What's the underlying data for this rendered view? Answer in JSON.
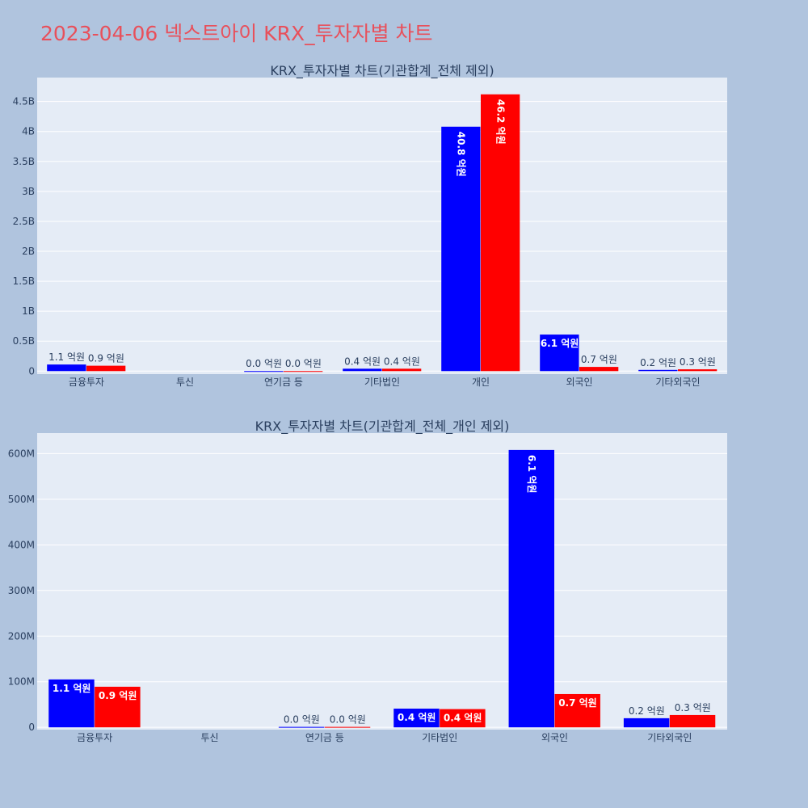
{
  "page": {
    "title": "2023-04-06 넥스트아이 KRX_투자자별 차트"
  },
  "colors": {
    "background": "#b0c4de",
    "plot_background": "#e5ecf6",
    "title": "#e8505b",
    "buy": "#0000ff",
    "sell": "#ff0000",
    "text": "#2a3f5f"
  },
  "chart_data": [
    {
      "type": "bar",
      "title": "KRX_투자자별 차트(기관합계_전체 제외)",
      "categories": [
        "금융투자",
        "투신",
        "연기금 등",
        "기타법인",
        "개인",
        "외국인",
        "기타외국인"
      ],
      "series": [
        {
          "color": "#0000ff",
          "values": [
            110000000,
            0,
            1000000,
            40000000,
            4080000000,
            610000000,
            20000000
          ],
          "labels": [
            "1.1 억원",
            "",
            "0.0 억원",
            "0.4 억원",
            "40.8 억원",
            "6.1 억원",
            "0.2 억원"
          ]
        },
        {
          "color": "#ff0000",
          "values": [
            90000000,
            0,
            1000000,
            40000000,
            4620000000,
            70000000,
            30000000
          ],
          "labels": [
            "0.9 억원",
            "",
            "0.0 억원",
            "0.4 억원",
            "46.2 억원",
            "0.7 억원",
            "0.3 억원"
          ]
        }
      ],
      "ylim": [
        -50000000,
        4900000000
      ],
      "yticks": [
        0,
        500000000,
        1000000000,
        1500000000,
        2000000000,
        2500000000,
        3000000000,
        3500000000,
        4000000000,
        4500000000
      ],
      "ytick_labels": [
        "0",
        "0.5B",
        "1B",
        "1.5B",
        "2B",
        "2.5B",
        "3B",
        "3.5B",
        "4B",
        "4.5B"
      ],
      "grid": true,
      "legend": "none"
    },
    {
      "type": "bar",
      "title": "KRX_투자자별 차트(기관합계_전체_개인 제외)",
      "categories": [
        "금융투자",
        "투신",
        "연기금 등",
        "기타법인",
        "외국인",
        "기타외국인"
      ],
      "series": [
        {
          "color": "#0000ff",
          "values": [
            105000000,
            0,
            1000000,
            41000000,
            608000000,
            20000000
          ],
          "labels": [
            "1.1 억원",
            "",
            "0.0 억원",
            "0.4 억원",
            "6.1 억원",
            "0.2 억원"
          ]
        },
        {
          "color": "#ff0000",
          "values": [
            89000000,
            0,
            1000000,
            40000000,
            73000000,
            27000000
          ],
          "labels": [
            "0.9 억원",
            "",
            "0.0 억원",
            "0.4 억원",
            "0.7 억원",
            "0.3 억원"
          ]
        }
      ],
      "ylim": [
        -5000000,
        645000000
      ],
      "yticks": [
        0,
        100000000,
        200000000,
        300000000,
        400000000,
        500000000,
        600000000
      ],
      "ytick_labels": [
        "0",
        "100M",
        "200M",
        "300M",
        "400M",
        "500M",
        "600M"
      ],
      "grid": true,
      "legend": "none"
    }
  ]
}
